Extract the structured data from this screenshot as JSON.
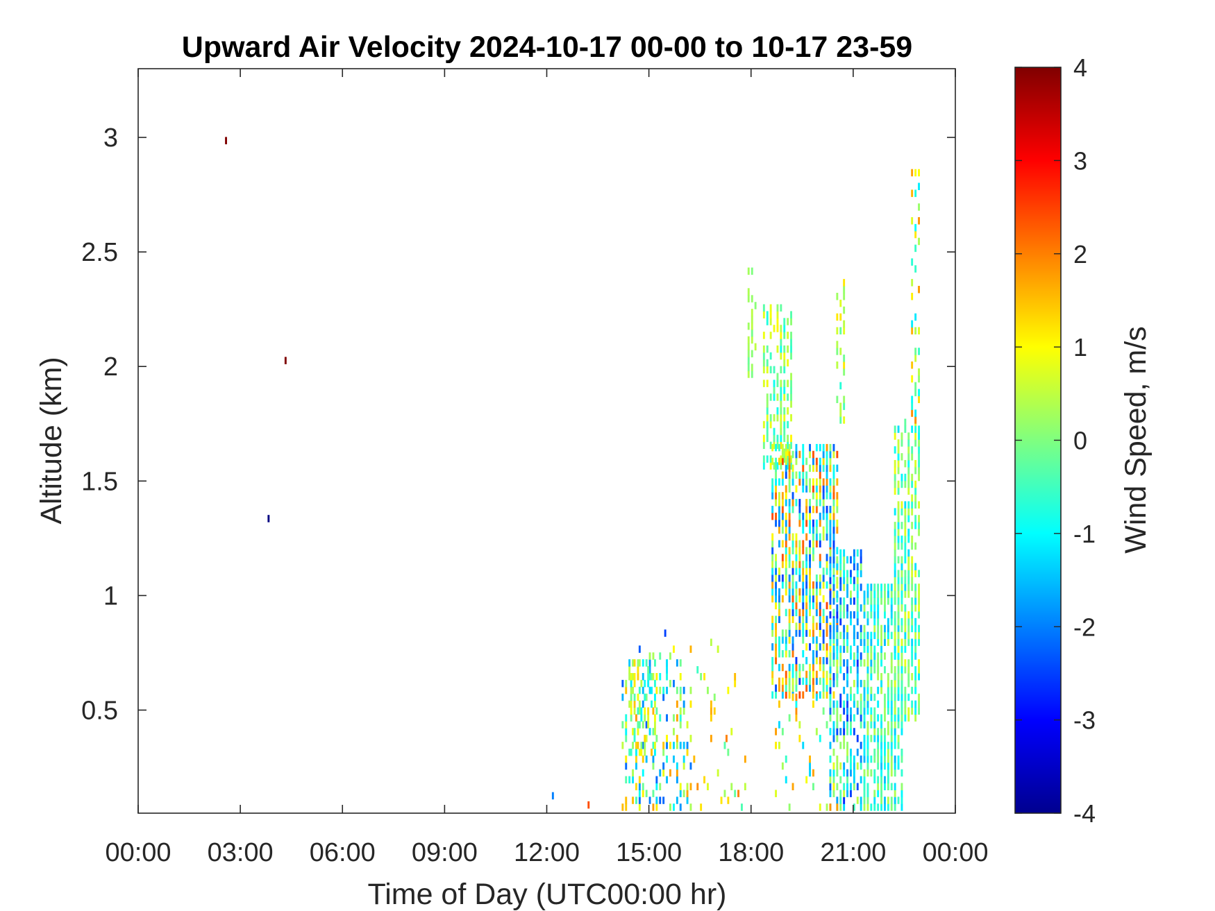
{
  "chart_data": {
    "type": "heatmap",
    "title": "Upward Air Velocity 2024-10-17 00-00 to 10-17 23-59",
    "xlabel": "Time of Day (UTC00:00 hr)",
    "ylabel": "Altitude (km)",
    "xlim": [
      0,
      24
    ],
    "ylim": [
      0.05,
      3.3
    ],
    "x_ticks": [
      {
        "value": 0,
        "label": "00:00"
      },
      {
        "value": 3,
        "label": "03:00"
      },
      {
        "value": 6,
        "label": "06:00"
      },
      {
        "value": 9,
        "label": "09:00"
      },
      {
        "value": 12,
        "label": "12:00"
      },
      {
        "value": 15,
        "label": "15:00"
      },
      {
        "value": 18,
        "label": "18:00"
      },
      {
        "value": 21,
        "label": "21:00"
      },
      {
        "value": 24,
        "label": "00:00"
      }
    ],
    "y_ticks": [
      {
        "value": 0.5,
        "label": "0.5"
      },
      {
        "value": 1,
        "label": "1"
      },
      {
        "value": 1.5,
        "label": "1.5"
      },
      {
        "value": 2,
        "label": "2"
      },
      {
        "value": 2.5,
        "label": "2.5"
      },
      {
        "value": 3,
        "label": "3"
      }
    ],
    "colorbar": {
      "label": "Wind Speed, m/s",
      "clim": [
        -4,
        4
      ],
      "colormap": "jet",
      "ticks": [
        {
          "value": -4,
          "label": "-4"
        },
        {
          "value": -3,
          "label": "-3"
        },
        {
          "value": -2,
          "label": "-2"
        },
        {
          "value": -1,
          "label": "-1"
        },
        {
          "value": 0,
          "label": "0"
        },
        {
          "value": 1,
          "label": "1"
        },
        {
          "value": 2,
          "label": "2"
        },
        {
          "value": 3,
          "label": "3"
        },
        {
          "value": 4,
          "label": "4"
        }
      ]
    },
    "grid": false,
    "cell_size": {
      "time_hr": 0.1,
      "alt_km": 0.03
    },
    "isolated_points": [
      {
        "t": 2.55,
        "alt": 2.97,
        "v": 4.0
      },
      {
        "t": 4.3,
        "alt": 2.01,
        "v": 4.0
      },
      {
        "t": 3.8,
        "alt": 1.32,
        "v": -4.0
      },
      {
        "t": 12.15,
        "alt": 0.11,
        "v": -2.0
      },
      {
        "t": 13.2,
        "alt": 0.07,
        "v": 2.4
      },
      {
        "t": 15.45,
        "alt": 0.82,
        "v": -2.5
      },
      {
        "t": 17.25,
        "alt": 0.36,
        "v": 2.0
      }
    ],
    "regions": [
      {
        "t0": 14.2,
        "t1": 16.2,
        "a0": 0.06,
        "a1": 0.78,
        "density": 0.33,
        "vmin": -2.3,
        "vmax": 1.8,
        "seed": 11
      },
      {
        "t0": 14.45,
        "t1": 15.15,
        "a0": 0.3,
        "a1": 0.72,
        "density": 0.55,
        "vmin": -1.2,
        "vmax": 1.6,
        "seed": 12
      },
      {
        "t0": 16.1,
        "t1": 17.9,
        "a0": 0.06,
        "a1": 0.85,
        "density": 0.06,
        "vmin": -0.6,
        "vmax": 2.0,
        "seed": 13
      },
      {
        "t0": 17.9,
        "t1": 18.2,
        "a0": 1.95,
        "a1": 2.4,
        "density": 0.5,
        "vmin": -0.2,
        "vmax": 0.6,
        "seed": 14
      },
      {
        "t0": 18.35,
        "t1": 19.2,
        "a0": 1.55,
        "a1": 2.25,
        "density": 0.55,
        "vmin": -1.0,
        "vmax": 1.2,
        "seed": 15
      },
      {
        "t0": 18.6,
        "t1": 20.6,
        "a0": 0.55,
        "a1": 1.65,
        "density": 0.72,
        "vmin": -2.6,
        "vmax": 2.5,
        "seed": 16
      },
      {
        "t0": 20.3,
        "t1": 21.3,
        "a0": 0.06,
        "a1": 1.2,
        "density": 0.65,
        "vmin": -2.8,
        "vmax": 0.6,
        "seed": 17
      },
      {
        "t0": 21.3,
        "t1": 22.5,
        "a0": 0.06,
        "a1": 1.05,
        "density": 0.75,
        "vmin": -1.6,
        "vmax": 0.5,
        "seed": 18
      },
      {
        "t0": 22.2,
        "t1": 23.0,
        "a0": 0.45,
        "a1": 1.75,
        "density": 0.65,
        "vmin": -1.3,
        "vmax": 0.9,
        "seed": 19
      },
      {
        "t0": 18.6,
        "t1": 20.6,
        "a0": 0.06,
        "a1": 0.55,
        "density": 0.1,
        "vmin": -1.4,
        "vmax": 2.0,
        "seed": 20
      },
      {
        "t0": 20.5,
        "t1": 20.75,
        "a0": 1.75,
        "a1": 2.4,
        "density": 0.45,
        "vmin": -0.8,
        "vmax": 1.2,
        "seed": 21
      },
      {
        "t0": 22.7,
        "t1": 23.0,
        "a0": 1.75,
        "a1": 2.85,
        "density": 0.35,
        "vmin": -1.2,
        "vmax": 2.0,
        "seed": 22
      }
    ]
  }
}
